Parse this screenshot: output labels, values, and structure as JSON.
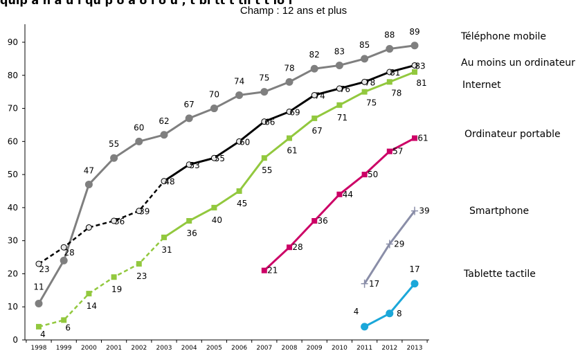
{
  "chart_data": {
    "type": "line",
    "title": "quip à h à  u l qu   p  o  à   o  l   o  u       , t bl tt   t til      t    t lo  l  ",
    "subtitle": "Champ : 12 ans et plus",
    "xlabel": "",
    "ylabel": "",
    "x": [
      "1998",
      "1999",
      "2000",
      "2001",
      "2002",
      "2003",
      "2004",
      "2005",
      "2006",
      "2007",
      "2008",
      "2009",
      "2010",
      "2011",
      "2012",
      "2013"
    ],
    "ylim": [
      0,
      90
    ],
    "yticks": [
      0,
      10,
      20,
      30,
      40,
      50,
      60,
      70,
      80,
      90
    ],
    "grid": false,
    "legend": "right",
    "series": [
      {
        "name": "Téléphone mobile",
        "color": "#7f7f7f",
        "marker": "circle",
        "solid_from": "1998",
        "values": [
          {
            "x": "1998",
            "y": 11
          },
          {
            "x": "1999",
            "y": 24
          },
          {
            "x": "2000",
            "y": 47
          },
          {
            "x": "2001",
            "y": 55
          },
          {
            "x": "2002",
            "y": 60
          },
          {
            "x": "2003",
            "y": 62
          },
          {
            "x": "2004",
            "y": 67
          },
          {
            "x": "2005",
            "y": 70
          },
          {
            "x": "2006",
            "y": 74
          },
          {
            "x": "2007",
            "y": 75
          },
          {
            "x": "2008",
            "y": 78
          },
          {
            "x": "2009",
            "y": 82
          },
          {
            "x": "2010",
            "y": 83
          },
          {
            "x": "2011",
            "y": 85
          },
          {
            "x": "2012",
            "y": 88
          },
          {
            "x": "2013",
            "y": 89
          }
        ],
        "labels": [
          "11",
          "",
          "47",
          "55",
          "60",
          "62",
          "67",
          "70",
          "74",
          "75",
          "78",
          "82",
          "83",
          "85",
          "88",
          "89"
        ]
      },
      {
        "name": "Au moins un ordinateur",
        "color": "#000000",
        "marker": "open-circle",
        "solid_from": "2003",
        "values": [
          {
            "x": "1998",
            "y": 23
          },
          {
            "x": "1999",
            "y": 28
          },
          {
            "x": "2000",
            "y": 34
          },
          {
            "x": "2001",
            "y": 36
          },
          {
            "x": "2002",
            "y": 39
          },
          {
            "x": "2003",
            "y": 48
          },
          {
            "x": "2004",
            "y": 53
          },
          {
            "x": "2005",
            "y": 55
          },
          {
            "x": "2006",
            "y": 60
          },
          {
            "x": "2007",
            "y": 66
          },
          {
            "x": "2008",
            "y": 69
          },
          {
            "x": "2009",
            "y": 74
          },
          {
            "x": "2010",
            "y": 76
          },
          {
            "x": "2011",
            "y": 78
          },
          {
            "x": "2012",
            "y": 81
          },
          {
            "x": "2013",
            "y": 83
          }
        ],
        "labels": [
          "23",
          "28",
          "",
          "36",
          "39",
          "48",
          "53",
          "55",
          "60",
          "66",
          "69",
          "74",
          "76",
          "78",
          "81",
          "83"
        ]
      },
      {
        "name": "Internet",
        "color": "#92c83e",
        "marker": "square",
        "solid_from": "2003",
        "values": [
          {
            "x": "1998",
            "y": 4
          },
          {
            "x": "1999",
            "y": 6
          },
          {
            "x": "2000",
            "y": 14
          },
          {
            "x": "2001",
            "y": 19
          },
          {
            "x": "2002",
            "y": 23
          },
          {
            "x": "2003",
            "y": 31
          },
          {
            "x": "2004",
            "y": 36
          },
          {
            "x": "2005",
            "y": 40
          },
          {
            "x": "2006",
            "y": 45
          },
          {
            "x": "2007",
            "y": 55
          },
          {
            "x": "2008",
            "y": 61
          },
          {
            "x": "2009",
            "y": 67
          },
          {
            "x": "2010",
            "y": 71
          },
          {
            "x": "2011",
            "y": 75
          },
          {
            "x": "2012",
            "y": 78
          },
          {
            "x": "2013",
            "y": 81
          }
        ],
        "labels": [
          "4",
          "6",
          "14",
          "19",
          "23",
          "31",
          "36",
          "40",
          "45",
          "55",
          "61",
          "67",
          "71",
          "75",
          "78",
          "81"
        ]
      },
      {
        "name": "Ordinateur portable",
        "color": "#cc0066",
        "marker": "square",
        "solid_from": "2007",
        "values": [
          {
            "x": "2007",
            "y": 21
          },
          {
            "x": "2008",
            "y": 28
          },
          {
            "x": "2009",
            "y": 36
          },
          {
            "x": "2010",
            "y": 44
          },
          {
            "x": "2011",
            "y": 50
          },
          {
            "x": "2012",
            "y": 57
          },
          {
            "x": "2013",
            "y": 61
          }
        ],
        "labels": [
          "21",
          "28",
          "36",
          "44",
          "50",
          "57",
          "61"
        ]
      },
      {
        "name": "Smartphone",
        "color": "#8a8ea8",
        "marker": "plus",
        "solid_from": "2011",
        "values": [
          {
            "x": "2011",
            "y": 17
          },
          {
            "x": "2012",
            "y": 29
          },
          {
            "x": "2013",
            "y": 39
          }
        ],
        "labels": [
          "17",
          "29",
          "39"
        ]
      },
      {
        "name": "Tablette tactile",
        "color": "#1ba7d9",
        "marker": "circle",
        "solid_from": "2011",
        "values": [
          {
            "x": "2011",
            "y": 4
          },
          {
            "x": "2012",
            "y": 8
          },
          {
            "x": "2013",
            "y": 17
          }
        ],
        "labels": [
          "4",
          "8",
          "17"
        ]
      }
    ]
  }
}
